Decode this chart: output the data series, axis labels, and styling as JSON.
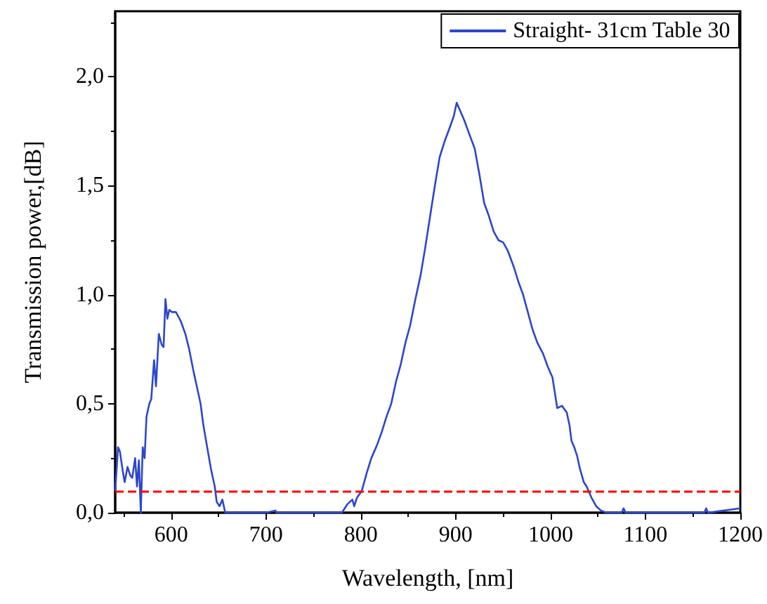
{
  "chart_data": {
    "type": "line",
    "xlabel": "Wavelength, [nm]",
    "ylabel": "Transmission power,[dB]",
    "xlim": [
      541,
      1200
    ],
    "xticks": [
      600,
      700,
      800,
      900,
      1000,
      1100,
      1200
    ],
    "ylim": [
      0,
      2.3
    ],
    "yticks": [
      {
        "value": 0,
        "label": "0,0"
      },
      {
        "value": 0.5,
        "label": "0,5"
      },
      {
        "value": 1,
        "label": "1,0"
      },
      {
        "value": 1.5,
        "label": "1,5"
      },
      {
        "value": 2,
        "label": "2,0"
      }
    ],
    "grid": false,
    "legend": "top right",
    "marker": "none",
    "line_style": "solid",
    "series": [
      {
        "name": "Straight- 31cm Table 30",
        "color": "#2c46cc",
        "x": [
          541,
          544,
          546,
          549,
          551,
          554,
          557,
          559,
          562,
          564,
          566,
          568,
          570,
          572,
          574,
          577,
          579,
          582,
          584,
          587,
          590,
          592,
          594,
          596,
          598,
          601,
          605,
          610,
          615,
          619,
          623,
          627,
          631,
          634,
          638,
          642,
          646,
          648,
          651,
          654,
          657,
          700,
          710,
          711,
          780,
          786,
          791,
          793,
          796,
          801,
          806,
          811,
          817,
          822,
          827,
          832,
          837,
          842,
          847,
          852,
          857,
          863,
          868,
          873,
          878,
          883,
          888,
          894,
          898,
          901,
          905,
          909,
          914,
          920,
          925,
          930,
          935,
          940,
          945,
          950,
          955,
          961,
          966,
          971,
          976,
          981,
          986,
          992,
          997,
          1002,
          1007,
          1012,
          1017,
          1020,
          1022,
          1025,
          1028,
          1031,
          1033,
          1035,
          1038,
          1043,
          1048,
          1053,
          1059,
          1075,
          1077,
          1079,
          1162,
          1164,
          1166,
          1200
        ],
        "values": [
          0.1,
          0.3,
          0.28,
          0.19,
          0.14,
          0.21,
          0.17,
          0.16,
          0.25,
          0.12,
          0.24,
          0,
          0.3,
          0.25,
          0.44,
          0.5,
          0.52,
          0.7,
          0.58,
          0.82,
          0.77,
          0.76,
          0.98,
          0.89,
          0.93,
          0.92,
          0.92,
          0.88,
          0.82,
          0.75,
          0.66,
          0.58,
          0.5,
          0.4,
          0.3,
          0.2,
          0.12,
          0.05,
          0.03,
          0.06,
          0,
          0,
          0.01,
          0,
          0,
          0.04,
          0.06,
          0.03,
          0.07,
          0.1,
          0.18,
          0.25,
          0.31,
          0.37,
          0.44,
          0.5,
          0.6,
          0.68,
          0.78,
          0.86,
          0.97,
          1.09,
          1.22,
          1.36,
          1.5,
          1.63,
          1.7,
          1.77,
          1.82,
          1.88,
          1.84,
          1.8,
          1.74,
          1.67,
          1.55,
          1.42,
          1.36,
          1.29,
          1.25,
          1.24,
          1.2,
          1.13,
          1.06,
          1.0,
          0.92,
          0.84,
          0.78,
          0.73,
          0.67,
          0.62,
          0.48,
          0.49,
          0.46,
          0.4,
          0.33,
          0.3,
          0.26,
          0.2,
          0.17,
          0.14,
          0.12,
          0.07,
          0.03,
          0.01,
          0,
          0,
          0.02,
          0,
          0,
          0.02,
          0,
          0.02
        ]
      }
    ],
    "ref_lines": [
      {
        "axis": "y",
        "value": 0.1,
        "color": "#ff0000",
        "line_style": "dashed"
      }
    ]
  }
}
